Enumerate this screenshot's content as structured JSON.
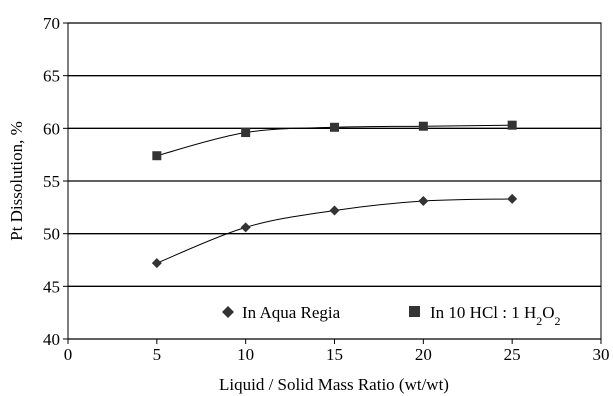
{
  "chart_data": {
    "type": "scatter",
    "xlabel": "Liquid / Solid Mass Ratio (wt/wt)",
    "ylabel": "Pt Dissolution, %",
    "xlim": [
      0,
      30
    ],
    "ylim": [
      40,
      70
    ],
    "x_ticks": [
      "0",
      "5",
      "10",
      "15",
      "20",
      "25",
      "30"
    ],
    "y_ticks": [
      "40",
      "45",
      "50",
      "55",
      "60",
      "65",
      "70"
    ],
    "grid": "horizontal",
    "legend_position": "bottom-inside",
    "series": [
      {
        "name": "In Aqua Regia",
        "marker": "diamond",
        "color": "#333333",
        "line": "smooth",
        "x": [
          5,
          10,
          15,
          20,
          25
        ],
        "y": [
          47.2,
          50.6,
          52.2,
          53.1,
          53.3
        ]
      },
      {
        "name": "In 10 HCl : 1 H2O2",
        "marker": "square",
        "color": "#333333",
        "line": "smooth",
        "x": [
          5,
          10,
          15,
          20,
          25
        ],
        "y": [
          57.4,
          59.6,
          60.1,
          60.2,
          60.3
        ]
      }
    ]
  }
}
